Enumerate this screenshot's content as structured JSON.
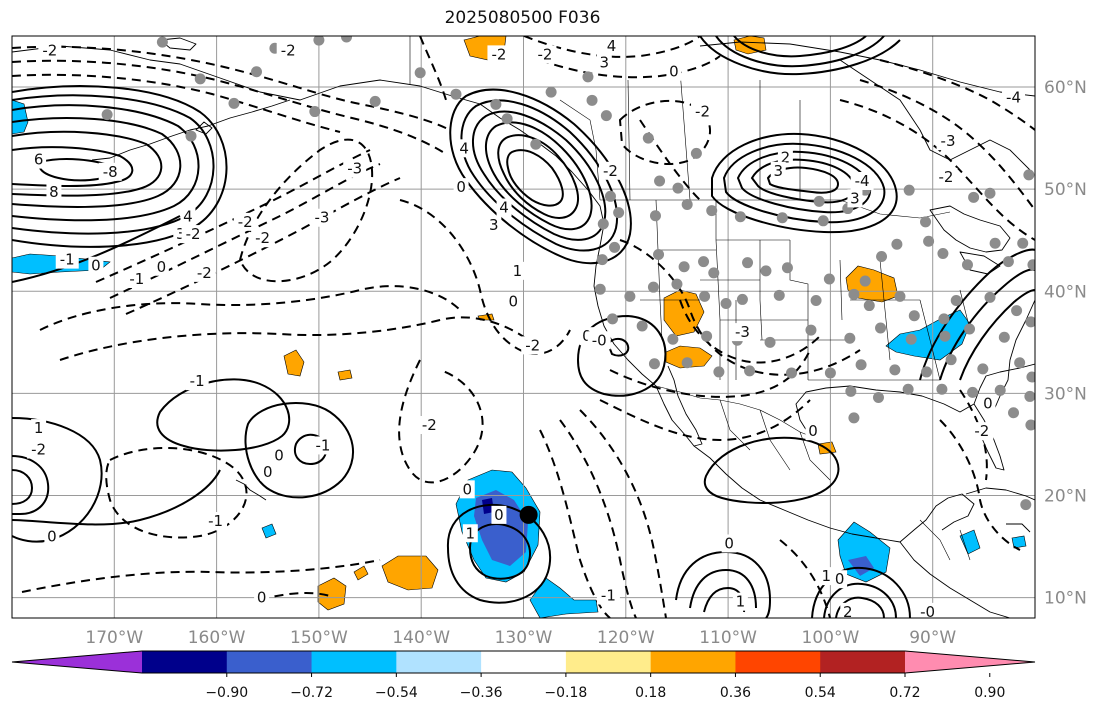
{
  "title": "2025080500 F036",
  "map": {
    "projection": "equirectangular",
    "lon_range": [
      -180,
      -80
    ],
    "lat_range": [
      8,
      65
    ],
    "grid": true,
    "land_outline_color": "#000000",
    "grid_color": "#9a9a9a"
  },
  "lat_ticks": [
    {
      "value": 60,
      "label": "60°N"
    },
    {
      "value": 50,
      "label": "50°N"
    },
    {
      "value": 40,
      "label": "40°N"
    },
    {
      "value": 30,
      "label": "30°N"
    },
    {
      "value": 20,
      "label": "20°N"
    },
    {
      "value": 10,
      "label": "10°N"
    }
  ],
  "lon_ticks": [
    {
      "value": -170,
      "label": "170°W"
    },
    {
      "value": -160,
      "label": "160°W"
    },
    {
      "value": -150,
      "label": "150°W"
    },
    {
      "value": -140,
      "label": "140°W"
    },
    {
      "value": -130,
      "label": "130°W"
    },
    {
      "value": -120,
      "label": "120°W"
    },
    {
      "value": -110,
      "label": "110°W"
    },
    {
      "value": -100,
      "label": "100°W"
    },
    {
      "value": -90,
      "label": "90°W"
    }
  ],
  "colorbar": {
    "colors": [
      "#9b30d9",
      "#00008b",
      "#3a5fcd",
      "#00bfff",
      "#b0e2ff",
      "#ffffff",
      "#ffec8b",
      "#ffa500",
      "#ff4500",
      "#b22222",
      "#ff8cb0"
    ],
    "tick_labels": [
      "−0.90",
      "−0.72",
      "−0.54",
      "−0.36",
      "−0.18",
      "0.18",
      "0.36",
      "0.54",
      "0.72",
      "0.90"
    ]
  },
  "contour_labels": [
    {
      "text": "-2",
      "lon": -176.3,
      "lat": 63.6
    },
    {
      "text": "-2",
      "lon": -153.0,
      "lat": 63.6
    },
    {
      "text": "-2",
      "lon": -132.4,
      "lat": 63.2
    },
    {
      "text": "-2",
      "lon": -127.9,
      "lat": 63.2
    },
    {
      "text": "4",
      "lon": -121.4,
      "lat": 64.0
    },
    {
      "text": "3",
      "lon": -122.1,
      "lat": 62.4
    },
    {
      "text": "0",
      "lon": -115.3,
      "lat": 61.5
    },
    {
      "text": "-2",
      "lon": -112.5,
      "lat": 57.6
    },
    {
      "text": "-4",
      "lon": -82.1,
      "lat": 59.0
    },
    {
      "text": "6",
      "lon": -177.4,
      "lat": 52.9
    },
    {
      "text": "-8",
      "lon": -170.4,
      "lat": 51.7
    },
    {
      "text": "8",
      "lon": -175.9,
      "lat": 49.7
    },
    {
      "text": "4",
      "lon": -162.8,
      "lat": 47.3
    },
    {
      "text": "3",
      "lon": -163.5,
      "lat": 45.6
    },
    {
      "text": "-2",
      "lon": -162.3,
      "lat": 45.6
    },
    {
      "text": "-2",
      "lon": -157.2,
      "lat": 46.8
    },
    {
      "text": "-2",
      "lon": -155.5,
      "lat": 45.2
    },
    {
      "text": "-3",
      "lon": -149.7,
      "lat": 47.2
    },
    {
      "text": "-3",
      "lon": -146.5,
      "lat": 52.0
    },
    {
      "text": "-2",
      "lon": -161.2,
      "lat": 41.8
    },
    {
      "text": "-1",
      "lon": -167.8,
      "lat": 41.2
    },
    {
      "text": "0",
      "lon": -165.4,
      "lat": 42.4
    },
    {
      "text": "-1",
      "lon": -174.6,
      "lat": 43.1
    },
    {
      "text": "0",
      "lon": -171.8,
      "lat": 42.5
    },
    {
      "text": "4",
      "lon": -135.8,
      "lat": 54.0
    },
    {
      "text": "4",
      "lon": -131.9,
      "lat": 48.2
    },
    {
      "text": "3",
      "lon": -132.9,
      "lat": 46.5
    },
    {
      "text": "0",
      "lon": -136.1,
      "lat": 50.2
    },
    {
      "text": "1",
      "lon": -130.6,
      "lat": 42.0
    },
    {
      "text": "-2",
      "lon": -121.5,
      "lat": 51.8
    },
    {
      "text": "0",
      "lon": -131.0,
      "lat": 39.0
    },
    {
      "text": "-2",
      "lon": -129.1,
      "lat": 34.7
    },
    {
      "text": "2",
      "lon": -104.4,
      "lat": 53.1
    },
    {
      "text": "3",
      "lon": -105.1,
      "lat": 51.8
    },
    {
      "text": "-4",
      "lon": -96.9,
      "lat": 50.8
    },
    {
      "text": "3",
      "lon": -97.6,
      "lat": 49.1
    },
    {
      "text": "-2",
      "lon": -88.7,
      "lat": 51.2
    },
    {
      "text": "-3",
      "lon": -88.5,
      "lat": 54.7
    },
    {
      "text": "-3",
      "lon": -108.6,
      "lat": 36.0
    },
    {
      "text": "0",
      "lon": -123.8,
      "lat": 35.6
    },
    {
      "text": "-0",
      "lon": -122.6,
      "lat": 35.2
    },
    {
      "text": "0",
      "lon": -101.7,
      "lat": 26.3
    },
    {
      "text": "-2",
      "lon": -85.2,
      "lat": 26.3
    },
    {
      "text": "0",
      "lon": -84.6,
      "lat": 29.0
    },
    {
      "text": "-1",
      "lon": -161.9,
      "lat": 31.2
    },
    {
      "text": "-2",
      "lon": -139.2,
      "lat": 26.9
    },
    {
      "text": "1",
      "lon": -177.4,
      "lat": 26.6
    },
    {
      "text": "-2",
      "lon": -177.4,
      "lat": 24.5
    },
    {
      "text": "0",
      "lon": -153.9,
      "lat": 23.9
    },
    {
      "text": "-1",
      "lon": -149.6,
      "lat": 24.9
    },
    {
      "text": "0",
      "lon": -155.0,
      "lat": 22.3
    },
    {
      "text": "-1",
      "lon": -160.1,
      "lat": 17.5
    },
    {
      "text": "0",
      "lon": -176.1,
      "lat": 16.0
    },
    {
      "text": "0",
      "lon": -135.5,
      "lat": 20.6
    },
    {
      "text": "0",
      "lon": -132.4,
      "lat": 18.1
    },
    {
      "text": "1",
      "lon": -135.2,
      "lat": 16.3
    },
    {
      "text": "-1",
      "lon": -121.7,
      "lat": 10.2
    },
    {
      "text": "0",
      "lon": -109.9,
      "lat": 15.3
    },
    {
      "text": "1",
      "lon": -108.8,
      "lat": 9.6
    },
    {
      "text": "1",
      "lon": -100.4,
      "lat": 12.1
    },
    {
      "text": "0",
      "lon": -99.1,
      "lat": 11.8
    },
    {
      "text": "2",
      "lon": -98.3,
      "lat": 8.6
    },
    {
      "text": "-0",
      "lon": -90.5,
      "lat": 8.6
    },
    {
      "text": "0",
      "lon": -155.6,
      "lat": 10.0
    }
  ],
  "features": {
    "highlight_marker": {
      "lon": -129.5,
      "lat": 18.1
    },
    "station_markers": [
      {
        "lon": -165.3,
        "lat": 64.4
      },
      {
        "lon": -161.6,
        "lat": 60.8
      },
      {
        "lon": -156.1,
        "lat": 61.5
      },
      {
        "lon": -154.3,
        "lat": 63.8
      },
      {
        "lon": -170.7,
        "lat": 57.3
      },
      {
        "lon": -162.5,
        "lat": 55.2
      },
      {
        "lon": -158.3,
        "lat": 58.4
      },
      {
        "lon": -140.1,
        "lat": 61.4
      },
      {
        "lon": -136.6,
        "lat": 59.3
      },
      {
        "lon": -132.7,
        "lat": 58.3
      },
      {
        "lon": -131.6,
        "lat": 56.9
      },
      {
        "lon": -128.8,
        "lat": 54.4
      },
      {
        "lon": -127.3,
        "lat": 59.5
      },
      {
        "lon": -123.7,
        "lat": 61.0
      },
      {
        "lon": -123.3,
        "lat": 58.7
      },
      {
        "lon": -121.9,
        "lat": 57.2
      },
      {
        "lon": -117.8,
        "lat": 55.0
      },
      {
        "lon": -113.1,
        "lat": 53.5
      },
      {
        "lon": -116.7,
        "lat": 50.8
      },
      {
        "lon": -114.9,
        "lat": 50.1
      },
      {
        "lon": -121.5,
        "lat": 49.3
      },
      {
        "lon": -120.7,
        "lat": 47.7
      },
      {
        "lon": -117.1,
        "lat": 47.4
      },
      {
        "lon": -114.0,
        "lat": 48.5
      },
      {
        "lon": -111.6,
        "lat": 47.9
      },
      {
        "lon": -108.8,
        "lat": 47.3
      },
      {
        "lon": -104.7,
        "lat": 47.2
      },
      {
        "lon": -101.1,
        "lat": 48.8
      },
      {
        "lon": -100.7,
        "lat": 46.9
      },
      {
        "lon": -98.3,
        "lat": 48.1
      },
      {
        "lon": -96.6,
        "lat": 49.9
      },
      {
        "lon": -92.3,
        "lat": 49.9
      },
      {
        "lon": -90.7,
        "lat": 46.8
      },
      {
        "lon": -86.0,
        "lat": 49.2
      },
      {
        "lon": -84.4,
        "lat": 49.6
      },
      {
        "lon": -80.6,
        "lat": 51.4
      },
      {
        "lon": -122.2,
        "lat": 46.6
      },
      {
        "lon": -121.1,
        "lat": 44.3
      },
      {
        "lon": -122.3,
        "lat": 43.1
      },
      {
        "lon": -116.8,
        "lat": 43.6
      },
      {
        "lon": -114.3,
        "lat": 42.4
      },
      {
        "lon": -112.4,
        "lat": 42.9
      },
      {
        "lon": -111.4,
        "lat": 41.8
      },
      {
        "lon": -108.1,
        "lat": 42.8
      },
      {
        "lon": -106.3,
        "lat": 42.0
      },
      {
        "lon": -104.2,
        "lat": 42.3
      },
      {
        "lon": -100.1,
        "lat": 41.2
      },
      {
        "lon": -96.6,
        "lat": 41.0
      },
      {
        "lon": -95.0,
        "lat": 43.4
      },
      {
        "lon": -93.5,
        "lat": 44.6
      },
      {
        "lon": -90.4,
        "lat": 44.9
      },
      {
        "lon": -89.0,
        "lat": 43.7
      },
      {
        "lon": -86.6,
        "lat": 42.6
      },
      {
        "lon": -83.9,
        "lat": 44.7
      },
      {
        "lon": -82.6,
        "lat": 42.9
      },
      {
        "lon": -80.2,
        "lat": 42.6
      },
      {
        "lon": -81.2,
        "lat": 44.7
      },
      {
        "lon": -122.5,
        "lat": 40.2
      },
      {
        "lon": -119.6,
        "lat": 39.5
      },
      {
        "lon": -117.3,
        "lat": 40.4
      },
      {
        "lon": -115.0,
        "lat": 40.7
      },
      {
        "lon": -112.3,
        "lat": 39.5
      },
      {
        "lon": -110.2,
        "lat": 38.8
      },
      {
        "lon": -108.6,
        "lat": 39.2
      },
      {
        "lon": -105.0,
        "lat": 39.6
      },
      {
        "lon": -101.4,
        "lat": 39.1
      },
      {
        "lon": -97.7,
        "lat": 39.7
      },
      {
        "lon": -96.2,
        "lat": 38.6
      },
      {
        "lon": -93.2,
        "lat": 39.5
      },
      {
        "lon": -91.8,
        "lat": 37.6
      },
      {
        "lon": -88.9,
        "lat": 37.3
      },
      {
        "lon": -87.7,
        "lat": 39.1
      },
      {
        "lon": -84.4,
        "lat": 39.4
      },
      {
        "lon": -81.8,
        "lat": 38.1
      },
      {
        "lon": -80.4,
        "lat": 37.0
      },
      {
        "lon": -121.3,
        "lat": 37.3
      },
      {
        "lon": -118.4,
        "lat": 36.6
      },
      {
        "lon": -115.4,
        "lat": 35.3
      },
      {
        "lon": -112.1,
        "lat": 35.6
      },
      {
        "lon": -109.1,
        "lat": 35.2
      },
      {
        "lon": -105.9,
        "lat": 35.0
      },
      {
        "lon": -101.9,
        "lat": 36.2
      },
      {
        "lon": -98.1,
        "lat": 35.4
      },
      {
        "lon": -95.1,
        "lat": 36.4
      },
      {
        "lon": -92.1,
        "lat": 35.3
      },
      {
        "lon": -88.8,
        "lat": 35.6
      },
      {
        "lon": -86.4,
        "lat": 36.3
      },
      {
        "lon": -83.0,
        "lat": 35.5
      },
      {
        "lon": -117.2,
        "lat": 32.9
      },
      {
        "lon": -114.0,
        "lat": 33.0
      },
      {
        "lon": -110.9,
        "lat": 32.1
      },
      {
        "lon": -107.9,
        "lat": 32.2
      },
      {
        "lon": -103.8,
        "lat": 32.0
      },
      {
        "lon": -100.0,
        "lat": 32.0
      },
      {
        "lon": -97.0,
        "lat": 32.8
      },
      {
        "lon": -93.7,
        "lat": 32.3
      },
      {
        "lon": -90.6,
        "lat": 32.1
      },
      {
        "lon": -88.2,
        "lat": 33.3
      },
      {
        "lon": -85.1,
        "lat": 32.4
      },
      {
        "lon": -81.5,
        "lat": 33.0
      },
      {
        "lon": -80.3,
        "lat": 31.6
      },
      {
        "lon": -98.0,
        "lat": 30.2
      },
      {
        "lon": -95.3,
        "lat": 29.6
      },
      {
        "lon": -92.4,
        "lat": 30.4
      },
      {
        "lon": -89.1,
        "lat": 30.4
      },
      {
        "lon": -86.1,
        "lat": 30.1
      },
      {
        "lon": -83.4,
        "lat": 30.3
      },
      {
        "lon": -80.5,
        "lat": 29.7
      },
      {
        "lon": -97.7,
        "lat": 27.6
      },
      {
        "lon": -82.1,
        "lat": 28.1
      },
      {
        "lon": -80.4,
        "lat": 26.9
      },
      {
        "lon": -80.9,
        "lat": 19.1
      },
      {
        "lon": -144.5,
        "lat": 58.6
      },
      {
        "lon": -150.4,
        "lat": 57.6
      },
      {
        "lon": -150.0,
        "lat": 64.6
      },
      {
        "lon": -147.3,
        "lat": 64.9
      }
    ]
  }
}
